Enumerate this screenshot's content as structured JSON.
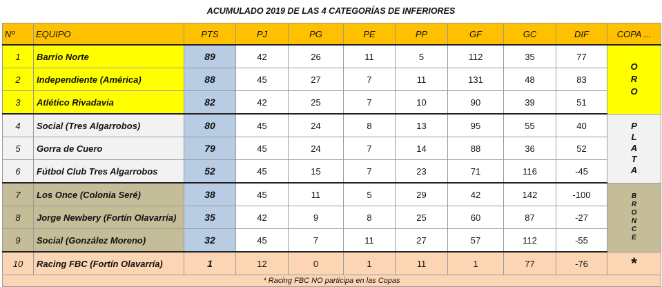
{
  "title": "ACUMULADO 2019 DE LAS 4 CATEGORÍAS DE INFERIORES",
  "headers": {
    "num": "Nº",
    "team": "EQUIPO",
    "pts": "PTS",
    "pj": "PJ",
    "pg": "PG",
    "pe": "PE",
    "pp": "PP",
    "gf": "GF",
    "gc": "GC",
    "dif": "DIF",
    "copa": "COPA ..."
  },
  "rows": [
    {
      "num": "1",
      "team": "Barrio Norte",
      "pts": "89",
      "pj": "42",
      "pg": "26",
      "pe": "11",
      "pp": "5",
      "gf": "112",
      "gc": "35",
      "dif": "77"
    },
    {
      "num": "2",
      "team": "Independiente (América)",
      "pts": "88",
      "pj": "45",
      "pg": "27",
      "pe": "7",
      "pp": "11",
      "gf": "131",
      "gc": "48",
      "dif": "83"
    },
    {
      "num": "3",
      "team": "Atlético Rivadavia",
      "pts": "82",
      "pj": "42",
      "pg": "25",
      "pe": "7",
      "pp": "10",
      "gf": "90",
      "gc": "39",
      "dif": "51"
    },
    {
      "num": "4",
      "team": "Social (Tres Algarrobos)",
      "pts": "80",
      "pj": "45",
      "pg": "24",
      "pe": "8",
      "pp": "13",
      "gf": "95",
      "gc": "55",
      "dif": "40"
    },
    {
      "num": "5",
      "team": "Gorra de Cuero",
      "pts": "79",
      "pj": "45",
      "pg": "24",
      "pe": "7",
      "pp": "14",
      "gf": "88",
      "gc": "36",
      "dif": "52"
    },
    {
      "num": "6",
      "team": "Fútbol Club Tres Algarrobos",
      "pts": "52",
      "pj": "45",
      "pg": "15",
      "pe": "7",
      "pp": "23",
      "gf": "71",
      "gc": "116",
      "dif": "-45"
    },
    {
      "num": "7",
      "team": "Los Once (Colonia Seré)",
      "pts": "38",
      "pj": "45",
      "pg": "11",
      "pe": "5",
      "pp": "29",
      "gf": "42",
      "gc": "142",
      "dif": "-100"
    },
    {
      "num": "8",
      "team": "Jorge Newbery (Fortín Olavarría)",
      "pts": "35",
      "pj": "42",
      "pg": "9",
      "pe": "8",
      "pp": "25",
      "gf": "60",
      "gc": "87",
      "dif": "-27"
    },
    {
      "num": "9",
      "team": "Social (González Moreno)",
      "pts": "32",
      "pj": "45",
      "pg": "7",
      "pe": "11",
      "pp": "27",
      "gf": "57",
      "gc": "112",
      "dif": "-55"
    },
    {
      "num": "10",
      "team": "Racing FBC (Fortín Olavarría)",
      "pts": "1",
      "pj": "12",
      "pg": "0",
      "pe": "1",
      "pp": "11",
      "gf": "1",
      "gc": "77",
      "dif": "-76"
    }
  ],
  "copa": {
    "oro": [
      "O",
      "R",
      "O"
    ],
    "plata": [
      "P",
      "L",
      "A",
      "T",
      "A"
    ],
    "bronce": [
      "B",
      "R",
      "O",
      "N",
      "C",
      "E"
    ],
    "none": "*"
  },
  "footnote": "* Racing FBC NO participa en las Copas",
  "colors": {
    "header": "#ffc000",
    "oro": "#ffff00",
    "plata": "#f2f2f2",
    "bronce": "#c4bd97",
    "excluded": "#fcd5b4",
    "pts": "#b8cce4"
  }
}
